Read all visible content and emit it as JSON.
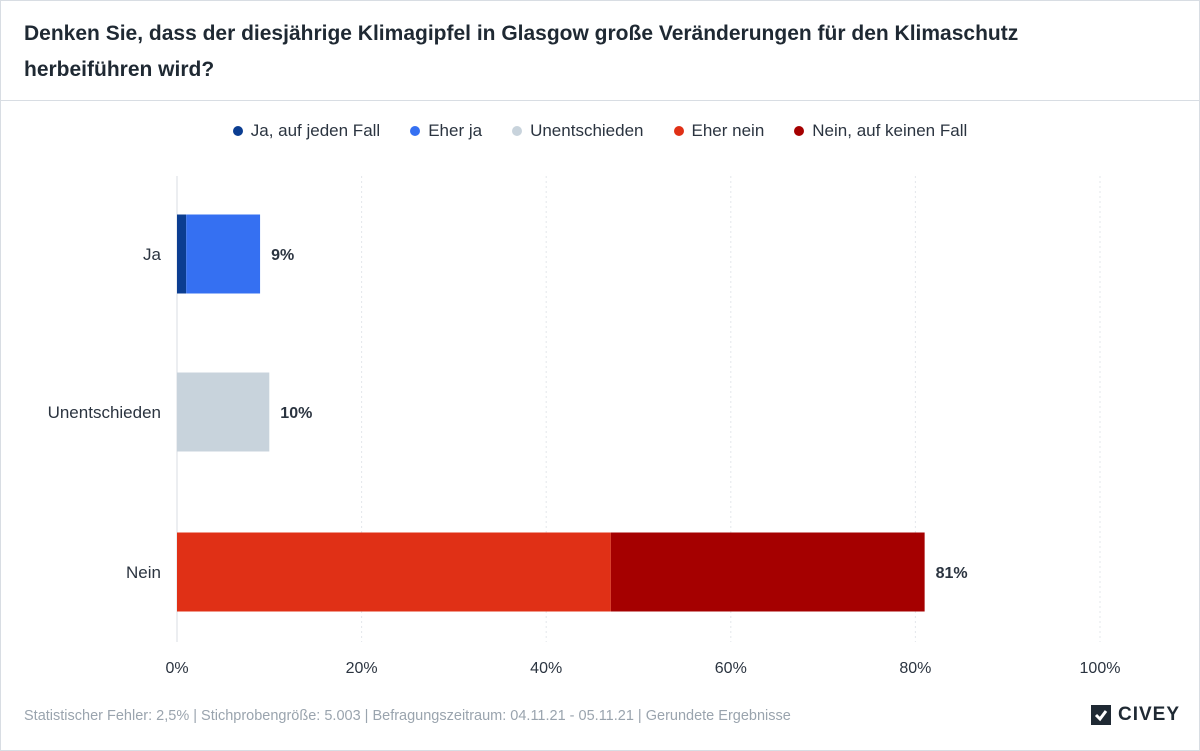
{
  "title": "Denken Sie, dass der diesjährige Klimagipfel in Glasgow große Veränderungen für den Klimaschutz herbeiführen wird?",
  "legend": [
    {
      "label": "Ja, auf jeden Fall",
      "color": "#0b3d91"
    },
    {
      "label": "Eher ja",
      "color": "#3570f2"
    },
    {
      "label": "Unentschieden",
      "color": "#c8d3dc"
    },
    {
      "label": "Eher nein",
      "color": "#e03016"
    },
    {
      "label": "Nein, auf keinen Fall",
      "color": "#a50000"
    }
  ],
  "chart_data": {
    "type": "bar",
    "orientation": "horizontal",
    "stacked": true,
    "categories": [
      "Ja",
      "Unentschieden",
      "Nein"
    ],
    "series": [
      {
        "name": "Ja, auf jeden Fall",
        "color": "#0b3d91",
        "values": [
          1,
          0,
          0
        ]
      },
      {
        "name": "Eher ja",
        "color": "#3570f2",
        "values": [
          8,
          0,
          0
        ]
      },
      {
        "name": "Unentschieden",
        "color": "#c8d3dc",
        "values": [
          0,
          10,
          0
        ]
      },
      {
        "name": "Eher nein",
        "color": "#e03016",
        "values": [
          0,
          0,
          47
        ]
      },
      {
        "name": "Nein, auf keinen Fall",
        "color": "#a50000",
        "values": [
          0,
          0,
          34
        ]
      }
    ],
    "totals": [
      "9%",
      "10%",
      "81%"
    ],
    "xticks": [
      "0%",
      "20%",
      "40%",
      "60%",
      "80%",
      "100%"
    ],
    "xlim": [
      0,
      100
    ],
    "grid": true
  },
  "footer": "Statistischer Fehler: 2,5% | Stichprobengröße: 5.003 | Befragungszeitraum: 04.11.21 - 05.11.21 | Gerundete Ergebnisse",
  "brand": "CIVEY"
}
